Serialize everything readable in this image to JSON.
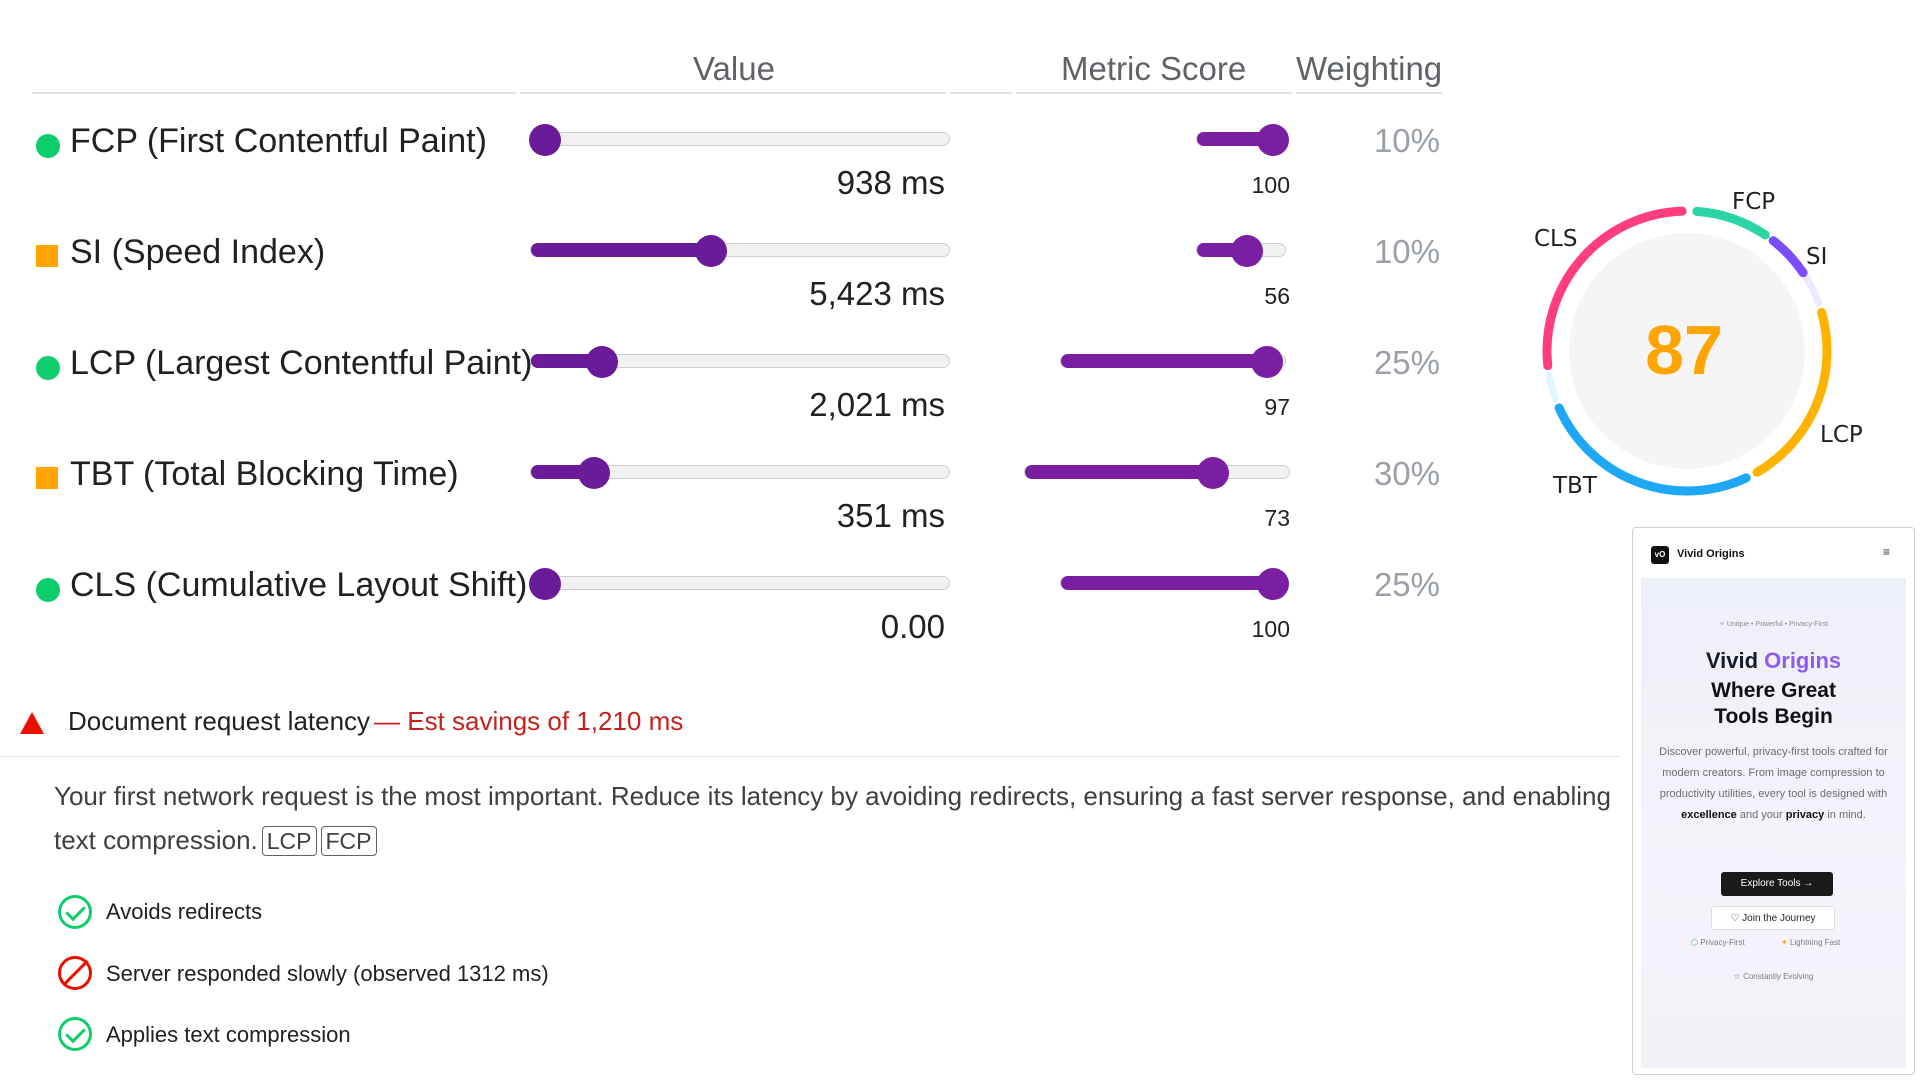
{
  "headers": {
    "value": "Value",
    "metric_score": "Metric Score",
    "weighting": "Weighting"
  },
  "metrics": [
    {
      "name": "FCP (First Contentful Paint)",
      "status": "pass",
      "value": "938 ms",
      "value_fraction": 0.0,
      "score": "100",
      "score_fraction": 1.0,
      "weight": "10%"
    },
    {
      "name": "SI (Speed Index)",
      "status": "average",
      "value": "5,423 ms",
      "value_fraction": 0.41,
      "score": "56",
      "score_fraction": 0.56,
      "weight": "10%"
    },
    {
      "name": "LCP (Largest Contentful Paint)",
      "status": "pass",
      "value": "2,021 ms",
      "value_fraction": 0.14,
      "score": "97",
      "score_fraction": 0.97,
      "weight": "25%"
    },
    {
      "name": "TBT (Total Blocking Time)",
      "status": "average",
      "value": "351 ms",
      "value_fraction": 0.12,
      "score": "73",
      "score_fraction": 0.73,
      "weight": "30%"
    },
    {
      "name": "CLS (Cumulative Layout Shift)",
      "status": "pass",
      "value": "0.00",
      "value_fraction": 0.0,
      "score": "100",
      "score_fraction": 1.0,
      "weight": "25%"
    }
  ],
  "gauge": {
    "score": "87",
    "labels": {
      "fcp": "FCP",
      "si": "SI",
      "lcp": "LCP",
      "tbt": "TBT",
      "cls": "CLS"
    },
    "colors": {
      "fcp": "#2bd4a4",
      "si": "#7c4dff",
      "lcp": "#ffb300",
      "tbt": "#1ea7f5",
      "cls": "#ff3d7f",
      "score": "#ffa400"
    }
  },
  "audit": {
    "title": "Document request latency",
    "savings": "— Est savings of 1,210 ms",
    "description": "Your first network request is the most important. Reduce its latency by avoiding redirects, ensuring a fast server response, and enabling text compression.",
    "chips": [
      "LCP",
      "FCP"
    ],
    "items": [
      {
        "label": "Avoids redirects",
        "status": "pass"
      },
      {
        "label": "Server responded slowly (observed 1312 ms)",
        "status": "fail"
      },
      {
        "label": "Applies text compression",
        "status": "pass"
      }
    ]
  },
  "preview": {
    "brand": "Vivid Origins",
    "logo": "vO",
    "menu_icon": "≡",
    "tagline": "✧ Unique • Powerful • Privacy-First",
    "title_a": "Vivid",
    "title_b": "Origins",
    "subtitle": "Where Great Tools Begin",
    "para_1": "Discover powerful, privacy-first tools crafted for modern creators. From image compression to productivity utilities, every tool is designed with",
    "para_bold_1": "excellence",
    "para_2": "and your",
    "para_bold_2": "privacy",
    "para_3": "in mind.",
    "cta_primary": "Explore Tools →",
    "cta_secondary": "♡  Join the Journey",
    "feature_1": "Privacy-First",
    "feature_2": "Lightning Fast",
    "feature_3": "☆ Constantly Evolving"
  }
}
